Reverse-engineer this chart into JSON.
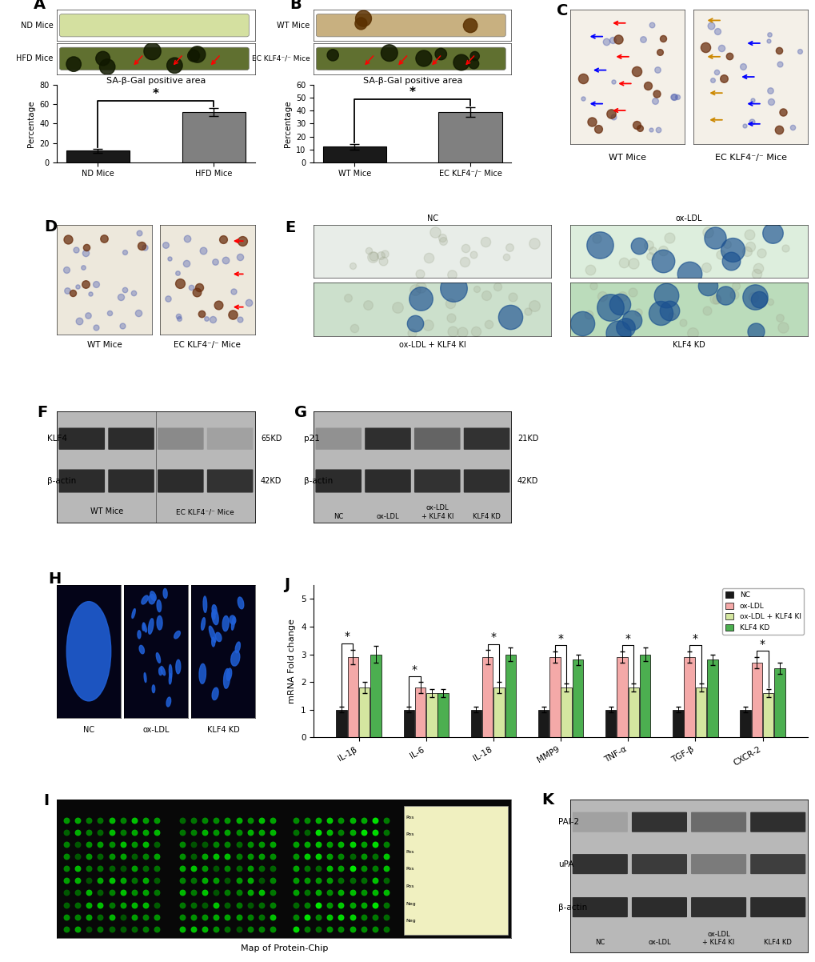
{
  "panel_A": {
    "title": "SA-β-Gal positive area",
    "categories": [
      "ND Mice",
      "HFD Mice"
    ],
    "values": [
      12,
      52
    ],
    "errors": [
      2,
      4
    ],
    "bar_colors": [
      "#1a1a1a",
      "#808080"
    ],
    "ylabel": "Percentage",
    "ylim": [
      0,
      80
    ],
    "yticks": [
      0,
      20,
      40,
      60,
      80
    ]
  },
  "panel_B": {
    "title": "SA-β-Gal positive area",
    "categories": [
      "WT Mice",
      "EC KLF4⁻/⁻ Mice"
    ],
    "values": [
      12,
      39
    ],
    "errors": [
      2,
      4
    ],
    "bar_colors": [
      "#1a1a1a",
      "#808080"
    ],
    "ylabel": "Percentage",
    "ylim": [
      0,
      60
    ],
    "yticks": [
      0,
      10,
      20,
      30,
      40,
      50,
      60
    ]
  },
  "panel_J": {
    "categories": [
      "IL-1β",
      "IL-6",
      "IL-18",
      "MMP9",
      "TNF-α",
      "TGF-β",
      "CXCR-2"
    ],
    "series": {
      "NC": [
        1.0,
        1.0,
        1.0,
        1.0,
        1.0,
        1.0,
        1.0
      ],
      "ox-LDL": [
        2.9,
        1.8,
        2.9,
        2.9,
        2.9,
        2.9,
        2.7
      ],
      "ox-LDL + KLF4 KI": [
        1.8,
        1.6,
        1.8,
        1.8,
        1.8,
        1.8,
        1.6
      ],
      "KLF4 KD": [
        3.0,
        1.6,
        3.0,
        2.8,
        3.0,
        2.8,
        2.5
      ]
    },
    "errors": {
      "NC": [
        0.1,
        0.1,
        0.1,
        0.1,
        0.1,
        0.1,
        0.1
      ],
      "ox-LDL": [
        0.25,
        0.2,
        0.25,
        0.2,
        0.2,
        0.2,
        0.2
      ],
      "ox-LDL + KLF4 KI": [
        0.2,
        0.15,
        0.2,
        0.15,
        0.15,
        0.15,
        0.15
      ],
      "KLF4 KD": [
        0.3,
        0.15,
        0.25,
        0.2,
        0.25,
        0.2,
        0.2
      ]
    },
    "colors": {
      "NC": "#1a1a1a",
      "ox-LDL": "#f4a9a8",
      "ox-LDL + KLF4 KI": "#d4e6a0",
      "KLF4 KD": "#4caf50"
    },
    "ylabel": "mRNA Fold change",
    "ylim": [
      0,
      5.5
    ],
    "yticks": [
      0,
      1,
      2,
      3,
      4,
      5
    ]
  },
  "bg_color": "#ffffff",
  "panel_labels_fontsize": 14,
  "nd_strip_color": "#d4e0a0",
  "hfd_strip_color": "#607030",
  "wt_strip_color": "#c8b080",
  "ec_strip_color": "#607030",
  "western_bg": "#b8b8b8",
  "western_band_dark": "#202020",
  "western_band_light": "#606060"
}
